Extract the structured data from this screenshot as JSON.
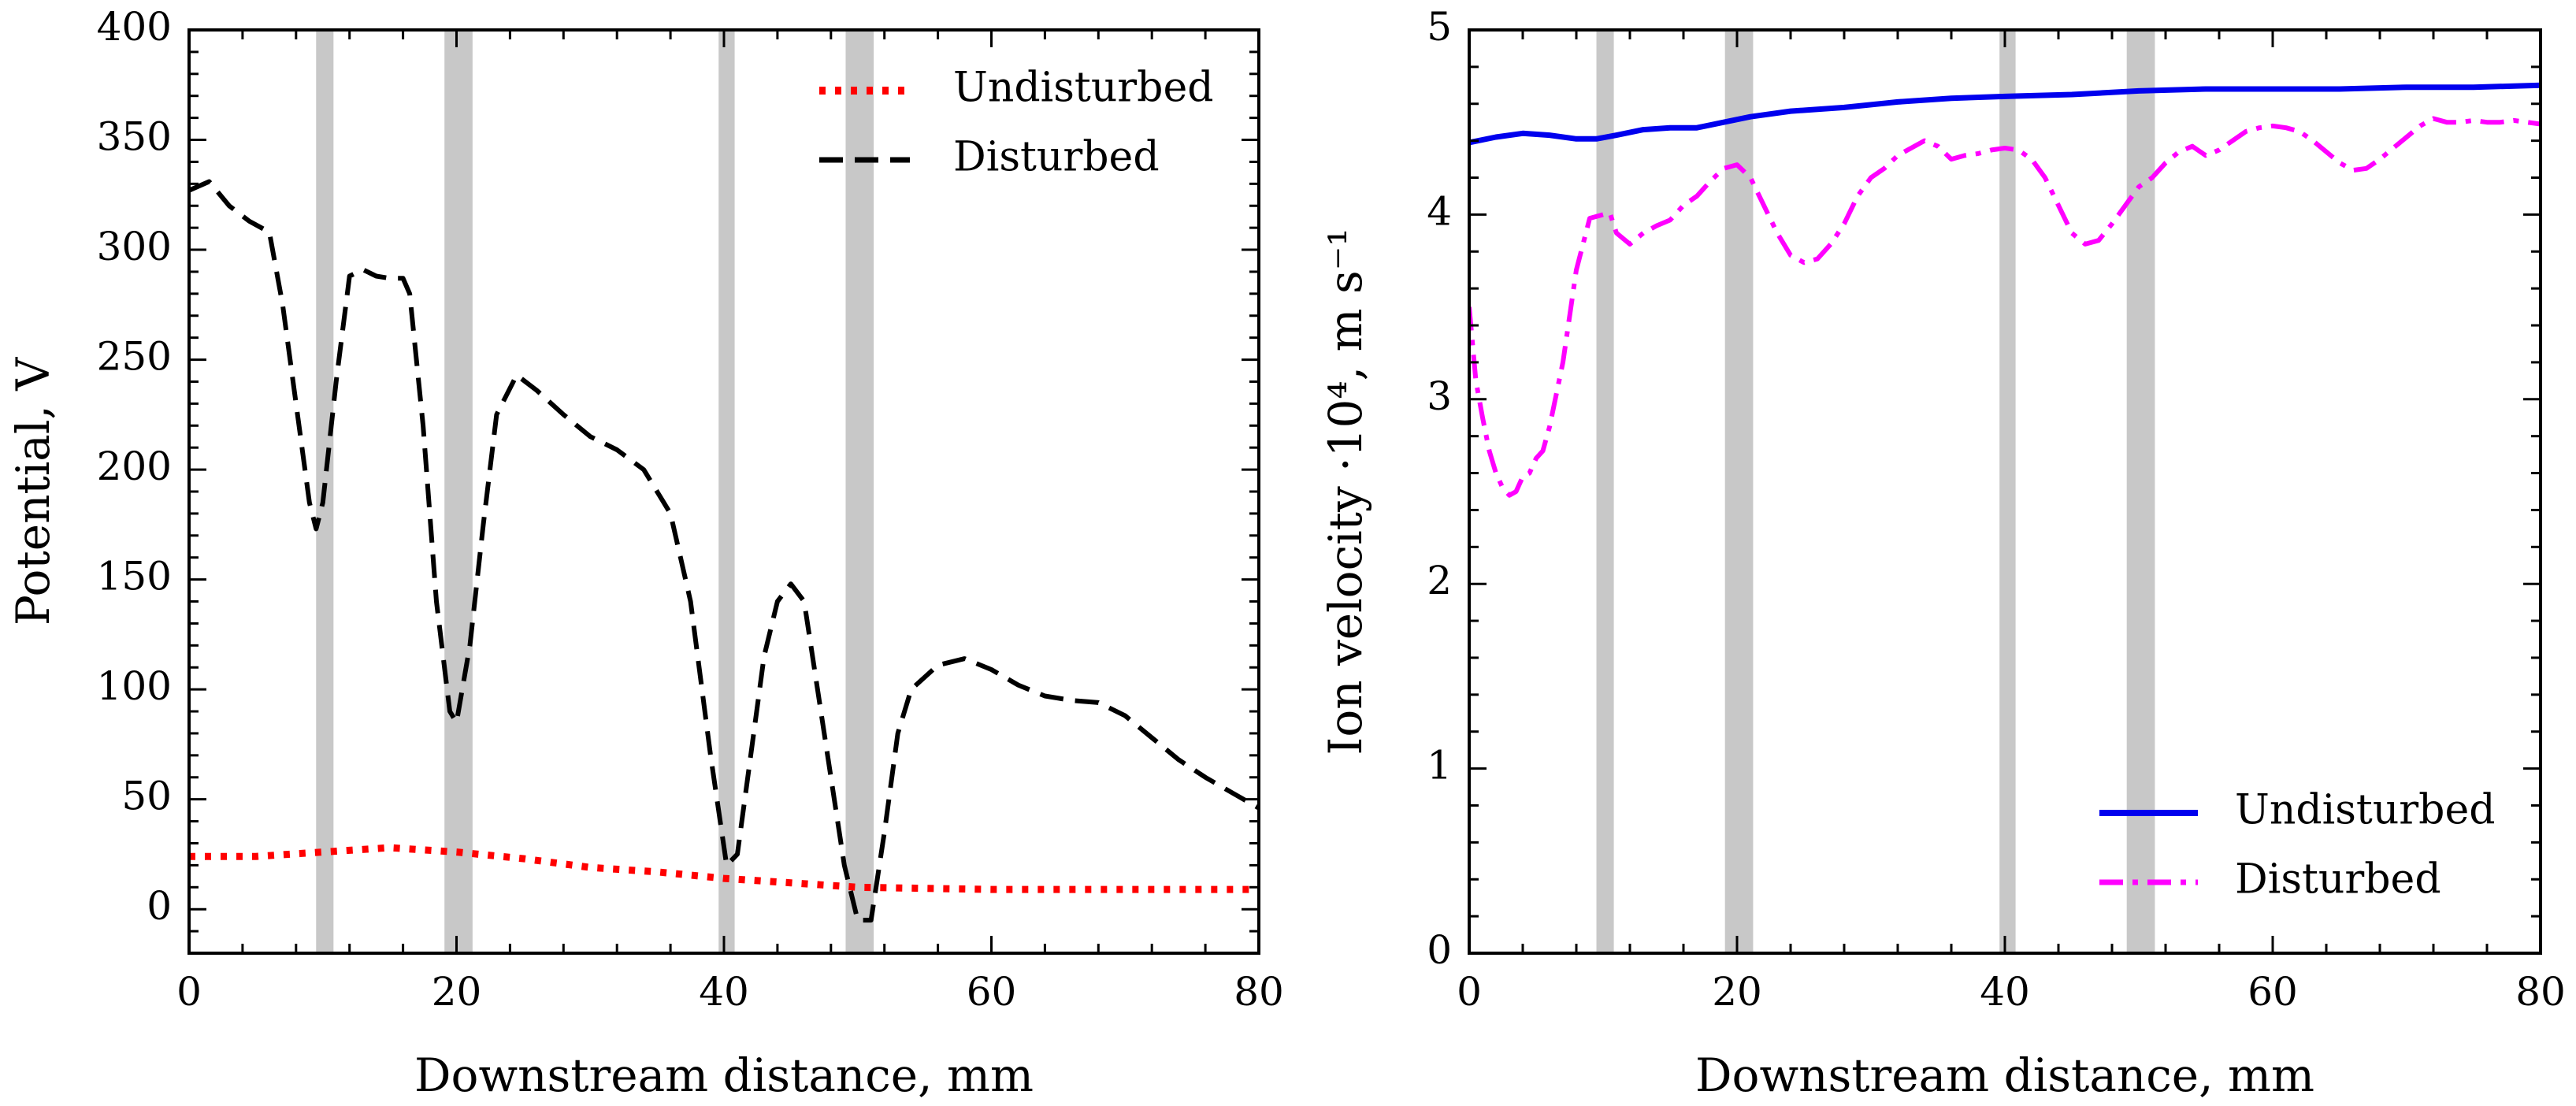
{
  "chart_data": [
    {
      "type": "line",
      "panel": "left",
      "xlabel": "Downstream distance, mm",
      "ylabel": "Potential, V",
      "xlim": [
        0,
        80
      ],
      "ylim": [
        -20,
        400
      ],
      "xticks": [
        0,
        20,
        40,
        60,
        80
      ],
      "yticks": [
        0,
        50,
        100,
        150,
        200,
        250,
        300,
        350,
        400
      ],
      "xtick_labels": [
        "0",
        "20",
        "40",
        "60",
        "80"
      ],
      "ytick_labels": [
        "0",
        "50",
        "100",
        "150",
        "200",
        "250",
        "300",
        "350",
        "400"
      ],
      "shaded_bands": [
        [
          9.5,
          10.8
        ],
        [
          19.1,
          21.2
        ],
        [
          39.6,
          40.8
        ],
        [
          49.1,
          51.2
        ]
      ],
      "legend_position": "top-right",
      "series": [
        {
          "name": "Undisturbed",
          "color": "#ff0000",
          "style": "dotted",
          "x": [
            0,
            5,
            10,
            15,
            20,
            25,
            30,
            35,
            40,
            45,
            50,
            55,
            60,
            65,
            70,
            75,
            80
          ],
          "y": [
            24,
            24,
            26,
            28,
            26,
            23,
            19,
            17,
            14,
            12,
            10,
            9.5,
            9,
            9,
            9,
            9,
            9
          ]
        },
        {
          "name": "Disturbed",
          "color": "#000000",
          "style": "dashed",
          "x": [
            0,
            1.5,
            3,
            4.5,
            6,
            7,
            8,
            9,
            9.5,
            10,
            11,
            12,
            13,
            14,
            15,
            16,
            16.5,
            17.5,
            18.5,
            19.5,
            20,
            21,
            22,
            23,
            24.5,
            26,
            28,
            30,
            32,
            34,
            36,
            37.5,
            39,
            40.2,
            41,
            42,
            43,
            44,
            45,
            46,
            47,
            48,
            49,
            50,
            51,
            52,
            53,
            54,
            56,
            58,
            60,
            62,
            64,
            66,
            68,
            70,
            72,
            74,
            76,
            78,
            80
          ],
          "y": [
            327,
            331,
            320,
            313,
            308,
            275,
            230,
            185,
            173,
            185,
            240,
            288,
            291,
            288,
            287,
            287,
            280,
            220,
            140,
            90,
            85,
            120,
            175,
            225,
            243,
            236,
            225,
            215,
            209,
            200,
            180,
            140,
            70,
            20,
            25,
            70,
            115,
            140,
            148,
            140,
            100,
            60,
            20,
            -5,
            -5,
            35,
            80,
            100,
            111,
            114,
            109,
            102,
            97,
            95,
            94,
            88,
            78,
            68,
            60,
            53,
            46
          ]
        }
      ]
    },
    {
      "type": "line",
      "panel": "right",
      "xlabel": "Downstream distance, mm",
      "ylabel": "Ion velocity ·10⁴, m s⁻¹",
      "xlim": [
        0,
        80
      ],
      "ylim": [
        0,
        5
      ],
      "xticks": [
        0,
        20,
        40,
        60,
        80
      ],
      "yticks": [
        0,
        1,
        2,
        3,
        4,
        5
      ],
      "xtick_labels": [
        "0",
        "20",
        "40",
        "60",
        "80"
      ],
      "ytick_labels": [
        "0",
        "1",
        "2",
        "3",
        "4",
        "5"
      ],
      "shaded_bands": [
        [
          9.5,
          10.8
        ],
        [
          19.1,
          21.2
        ],
        [
          39.6,
          40.8
        ],
        [
          49.1,
          51.2
        ]
      ],
      "legend_position": "bottom-right",
      "series": [
        {
          "name": "Undisturbed",
          "color": "#0000ee",
          "style": "solid",
          "x": [
            0,
            2,
            4,
            6,
            8,
            9.5,
            11,
            13,
            15,
            17,
            19,
            21,
            24,
            28,
            32,
            36,
            40,
            45,
            50,
            55,
            60,
            65,
            70,
            75,
            80
          ],
          "y": [
            4.39,
            4.42,
            4.44,
            4.43,
            4.41,
            4.41,
            4.43,
            4.46,
            4.47,
            4.47,
            4.5,
            4.53,
            4.56,
            4.58,
            4.61,
            4.63,
            4.64,
            4.65,
            4.67,
            4.68,
            4.68,
            4.68,
            4.69,
            4.69,
            4.7
          ]
        },
        {
          "name": "Disturbed",
          "color": "#ff00ff",
          "style": "dashdot",
          "x": [
            0,
            0.5,
            1,
            1.5,
            2,
            2.5,
            3,
            3.5,
            4,
            4.5,
            5,
            5.5,
            6,
            7,
            8,
            9,
            10,
            10.5,
            11,
            12,
            13,
            14,
            15,
            16,
            17,
            18,
            19,
            20,
            21,
            22,
            23,
            24,
            25,
            26,
            27,
            28,
            29,
            30,
            31,
            32,
            33,
            34,
            35,
            36,
            37,
            38,
            39,
            40,
            41,
            42,
            43,
            44,
            45,
            46,
            47,
            48,
            49,
            50,
            51,
            52,
            53,
            54,
            55,
            56,
            57,
            58,
            59,
            60,
            61,
            62,
            63,
            64,
            65,
            66,
            67,
            68,
            69,
            70,
            71,
            72,
            73,
            74,
            75,
            76,
            77,
            78,
            79,
            80
          ],
          "y": [
            3.5,
            3.1,
            2.9,
            2.72,
            2.6,
            2.52,
            2.48,
            2.5,
            2.58,
            2.6,
            2.68,
            2.72,
            2.85,
            3.2,
            3.7,
            3.98,
            4.0,
            4.01,
            3.9,
            3.84,
            3.9,
            3.94,
            3.97,
            4.05,
            4.1,
            4.18,
            4.25,
            4.27,
            4.2,
            4.05,
            3.9,
            3.78,
            3.74,
            3.76,
            3.84,
            3.95,
            4.1,
            4.2,
            4.25,
            4.32,
            4.36,
            4.4,
            4.37,
            4.3,
            4.32,
            4.33,
            4.35,
            4.36,
            4.35,
            4.3,
            4.2,
            4.05,
            3.9,
            3.84,
            3.86,
            3.95,
            4.05,
            4.15,
            4.2,
            4.28,
            4.34,
            4.37,
            4.32,
            4.35,
            4.4,
            4.45,
            4.47,
            4.48,
            4.47,
            4.45,
            4.4,
            4.34,
            4.28,
            4.24,
            4.25,
            4.3,
            4.36,
            4.42,
            4.48,
            4.52,
            4.5,
            4.5,
            4.51,
            4.5,
            4.5,
            4.51,
            4.5,
            4.49
          ]
        }
      ]
    }
  ]
}
